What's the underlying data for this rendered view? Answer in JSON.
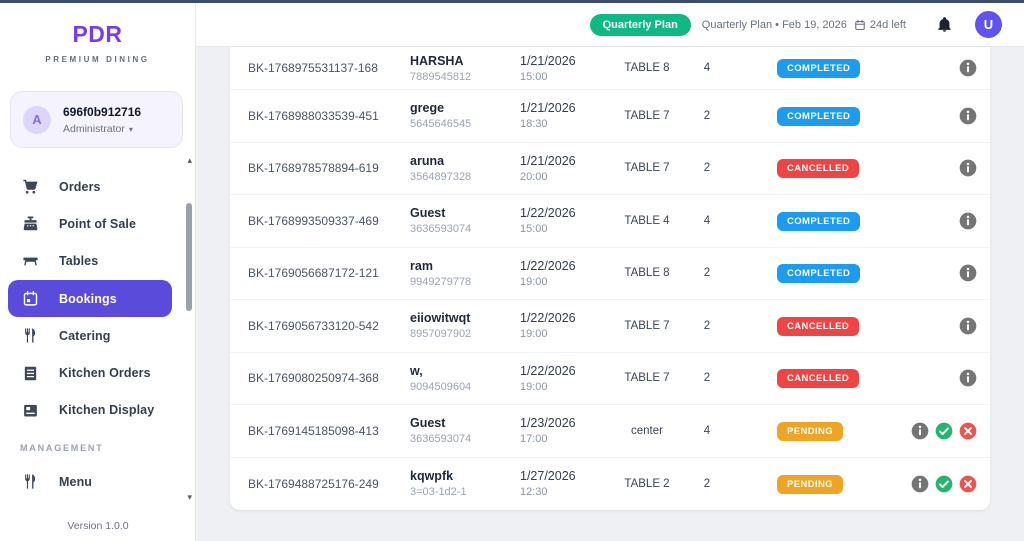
{
  "brand": {
    "name": "PDR",
    "tagline": "PREMIUM DINING"
  },
  "profile": {
    "avatar_letter": "A",
    "id": "696f0b912716",
    "role": "Administrator",
    "caret": "▾"
  },
  "sidebar": {
    "items": [
      {
        "label": "Orders",
        "icon": "cart-icon",
        "active": false
      },
      {
        "label": "Point of Sale",
        "icon": "register-icon",
        "active": false
      },
      {
        "label": "Tables",
        "icon": "table-icon",
        "active": false
      },
      {
        "label": "Bookings",
        "icon": "calendar-icon",
        "active": true
      },
      {
        "label": "Catering",
        "icon": "catering-icon",
        "active": false
      },
      {
        "label": "Kitchen Orders",
        "icon": "list-icon",
        "active": false
      },
      {
        "label": "Kitchen Display",
        "icon": "display-icon",
        "active": false
      }
    ],
    "section_label": "MANAGEMENT",
    "management_items": [
      {
        "label": "Menu",
        "icon": "utensils-icon",
        "active": false
      }
    ],
    "scroll_up_glyph": "▴",
    "scroll_down_glyph": "▾",
    "version": "Version 1.0.0"
  },
  "header": {
    "plan_badge": "Quarterly Plan",
    "plan_text": "Quarterly Plan • Feb 19, 2026",
    "days_left": "24d left",
    "avatar_letter": "U"
  },
  "colors": {
    "accent_purple": "#5a4bdb",
    "brand_purple": "#7c3aed",
    "plan_green": "#10b981",
    "status_completed": "#1d9bf0",
    "status_cancelled": "#ef4444",
    "status_pending": "#f0a424",
    "info_gray": "#757575",
    "approve_green": "#26b56d",
    "reject_red": "#ef5350",
    "avatar_purple": "#5f55ee"
  },
  "table": {
    "rows": [
      {
        "id": "BK-1768975531137-168",
        "name": "HARSHA",
        "phone": "7889545812",
        "date": "1/21/2026",
        "time": "15:00",
        "table": "TABLE 8",
        "guests": "4",
        "status": "COMPLETED"
      },
      {
        "id": "BK-1768988033539-451",
        "name": "grege",
        "phone": "5645646545",
        "date": "1/21/2026",
        "time": "18:30",
        "table": "TABLE 7",
        "guests": "2",
        "status": "COMPLETED"
      },
      {
        "id": "BK-1768978578894-619",
        "name": "aruna",
        "phone": "3564897328",
        "date": "1/21/2026",
        "time": "20:00",
        "table": "TABLE 7",
        "guests": "2",
        "status": "CANCELLED"
      },
      {
        "id": "BK-1768993509337-469",
        "name": "Guest",
        "phone": "3636593074",
        "date": "1/22/2026",
        "time": "15:00",
        "table": "TABLE 4",
        "guests": "4",
        "status": "COMPLETED"
      },
      {
        "id": "BK-1769056687172-121",
        "name": "ram",
        "phone": "9949279778",
        "date": "1/22/2026",
        "time": "19:00",
        "table": "TABLE 8",
        "guests": "2",
        "status": "COMPLETED"
      },
      {
        "id": "BK-1769056733120-542",
        "name": "eiiowitwqt",
        "phone": "8957097902",
        "date": "1/22/2026",
        "time": "19:00",
        "table": "TABLE 7",
        "guests": "2",
        "status": "CANCELLED"
      },
      {
        "id": "BK-1769080250974-368",
        "name": "w,",
        "phone": "9094509604",
        "date": "1/22/2026",
        "time": "19:00",
        "table": "TABLE 7",
        "guests": "2",
        "status": "CANCELLED"
      },
      {
        "id": "BK-1769145185098-413",
        "name": "Guest",
        "phone": "3636593074",
        "date": "1/23/2026",
        "time": "17:00",
        "table": "center",
        "guests": "4",
        "status": "PENDING"
      },
      {
        "id": "BK-1769488725176-249",
        "name": "kqwpfk",
        "phone": "3=03-1d2-1",
        "date": "1/27/2026",
        "time": "12:30",
        "table": "TABLE 2",
        "guests": "2",
        "status": "PENDING"
      }
    ]
  }
}
